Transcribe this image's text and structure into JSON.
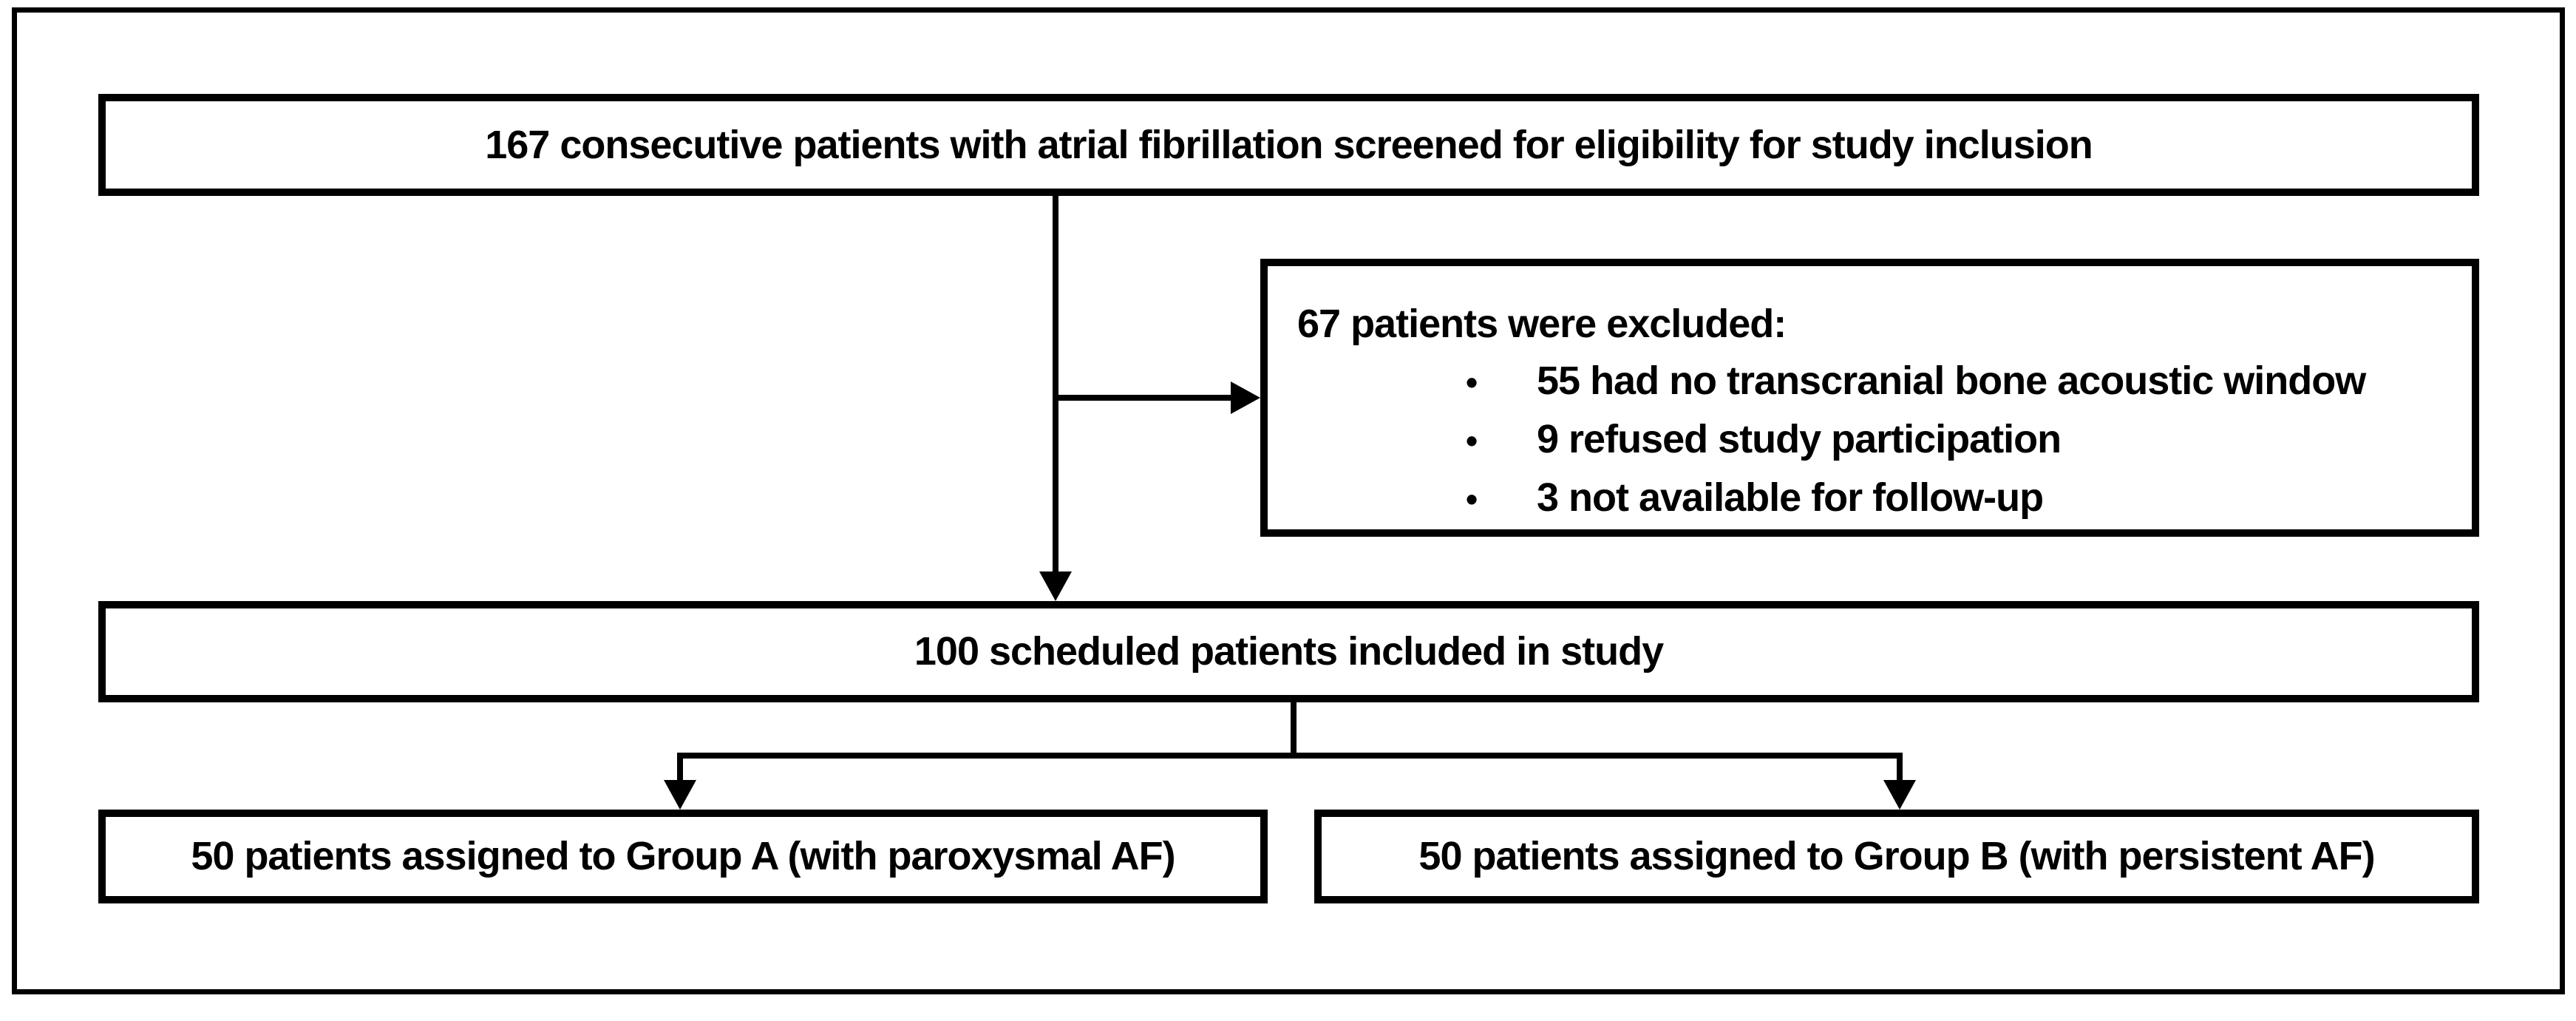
{
  "diagram": {
    "type": "study-flowchart",
    "bullet": "•",
    "colors": {
      "line": "#000000",
      "background": "#ffffff",
      "text": "#000000"
    },
    "boxes": {
      "screened": {
        "text": "167 consecutive patients with atrial fibrillation screened for eligibility for study inclusion"
      },
      "excluded": {
        "title": "67 patients were excluded:",
        "items": [
          "55 had no transcranial bone acoustic window",
          "9 refused study participation",
          "3 not available for follow-up"
        ]
      },
      "included": {
        "text": "100 scheduled patients included in study"
      },
      "group_a": {
        "text": "50 patients assigned to Group A (with paroxysmal AF)"
      },
      "group_b": {
        "text": "50 patients assigned to Group B (with persistent AF)"
      }
    }
  }
}
